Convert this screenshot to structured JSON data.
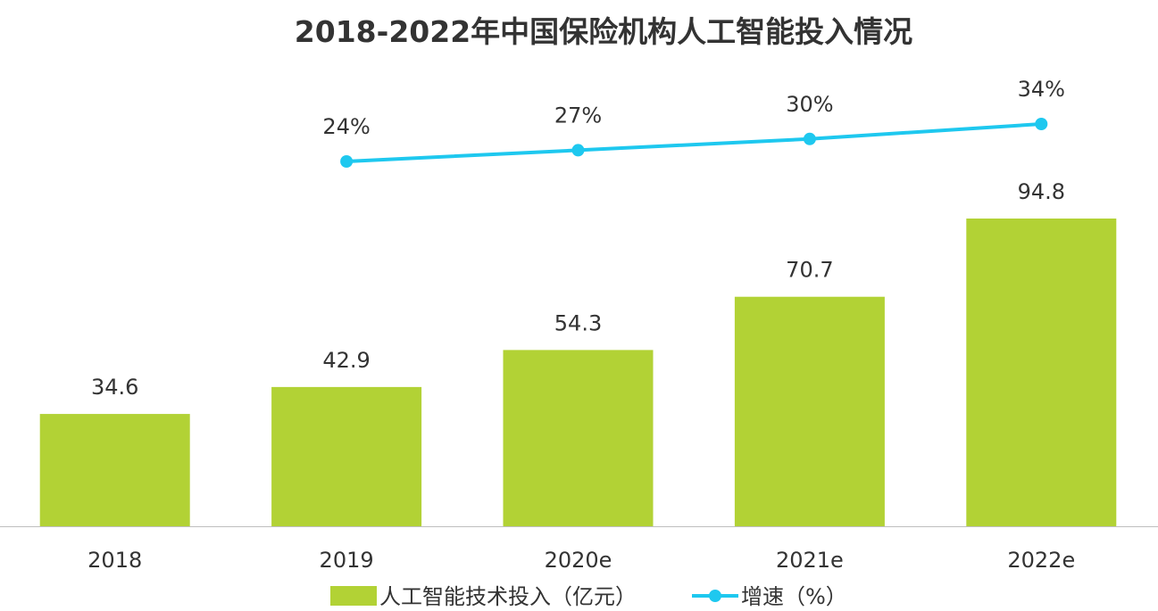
{
  "chart_data": {
    "type": "bar",
    "title": "2018-2022年中国保险机构人工智能投入情况",
    "categories": [
      "2018",
      "2019",
      "2020e",
      "2021e",
      "2022e"
    ],
    "series": [
      {
        "name": "人工智能技术投入（亿元）",
        "type": "bar",
        "axis": "left",
        "values": [
          34.6,
          42.9,
          54.3,
          70.7,
          94.8
        ],
        "labels": [
          "34.6",
          "42.9",
          "54.3",
          "70.7",
          "94.8"
        ],
        "color": "#b2d235"
      },
      {
        "name": "增速（%）",
        "type": "line",
        "axis": "right",
        "values": [
          null,
          24,
          27,
          30,
          34
        ],
        "labels": [
          "",
          "24%",
          "27%",
          "30%",
          "34%"
        ],
        "color": "#1ec8ef"
      }
    ],
    "ylim_bar": [
      0,
      100
    ],
    "ylim_line": [
      0,
      45
    ],
    "grid": false,
    "legend_position": "bottom"
  }
}
